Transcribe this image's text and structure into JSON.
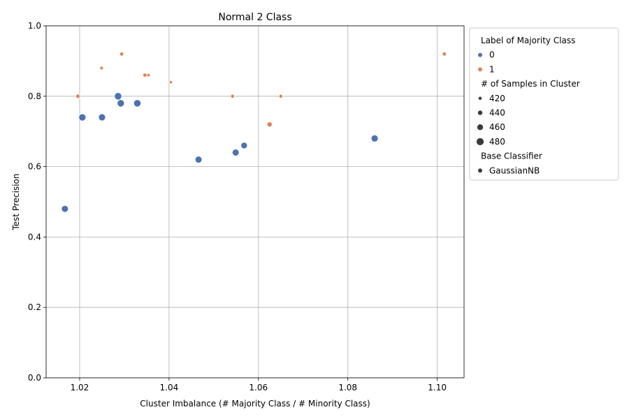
{
  "colors": {
    "class0": "#4c72b0",
    "class1": "#dd8452",
    "grid": "#b0b0b0"
  },
  "chart_data": {
    "type": "scatter",
    "title": "Normal 2 Class",
    "xlabel": "Cluster Imbalance (# Majority Class / # Minority Class)",
    "ylabel": "Test Precision",
    "xlim": [
      1.0125,
      1.106
    ],
    "ylim": [
      0.0,
      1.0
    ],
    "xticks": [
      1.02,
      1.04,
      1.06,
      1.08,
      1.1
    ],
    "xtick_labels": [
      "1.02",
      "1.04",
      "1.06",
      "1.08",
      "1.10"
    ],
    "yticks": [
      0.0,
      0.2,
      0.4,
      0.6,
      0.8,
      1.0
    ],
    "ytick_labels": [
      "0.0",
      "0.2",
      "0.4",
      "0.6",
      "0.8",
      "1.0"
    ],
    "grid": true,
    "legend_placement": "outside right",
    "legend": {
      "hue_title": "Label of Majority Class",
      "hue_entries": [
        {
          "label": "0",
          "color": "#4c72b0"
        },
        {
          "label": "1",
          "color": "#dd8452"
        }
      ],
      "size_title": "# of Samples in Cluster",
      "size_entries": [
        {
          "label": "420",
          "size": 420
        },
        {
          "label": "440",
          "size": 440
        },
        {
          "label": "460",
          "size": 460
        },
        {
          "label": "480",
          "size": 480
        }
      ],
      "style_title": "Base Classifier",
      "style_entries": [
        {
          "label": "GaussianNB"
        }
      ]
    },
    "series": [
      {
        "name": "0",
        "points": [
          {
            "x": 1.0167,
            "y": 0.48,
            "size": 475
          },
          {
            "x": 1.0206,
            "y": 0.74,
            "size": 480
          },
          {
            "x": 1.025,
            "y": 0.74,
            "size": 478
          },
          {
            "x": 1.0286,
            "y": 0.8,
            "size": 482
          },
          {
            "x": 1.0292,
            "y": 0.78,
            "size": 480
          },
          {
            "x": 1.0329,
            "y": 0.78,
            "size": 482
          },
          {
            "x": 1.0466,
            "y": 0.62,
            "size": 476
          },
          {
            "x": 1.0549,
            "y": 0.64,
            "size": 476
          },
          {
            "x": 1.0568,
            "y": 0.66,
            "size": 470
          },
          {
            "x": 1.086,
            "y": 0.68,
            "size": 478
          }
        ]
      },
      {
        "name": "1",
        "points": [
          {
            "x": 1.0196,
            "y": 0.8,
            "size": 435
          },
          {
            "x": 1.0249,
            "y": 0.88,
            "size": 425
          },
          {
            "x": 1.0294,
            "y": 0.92,
            "size": 432
          },
          {
            "x": 1.0346,
            "y": 0.86,
            "size": 432
          },
          {
            "x": 1.0354,
            "y": 0.86,
            "size": 422
          },
          {
            "x": 1.0404,
            "y": 0.84,
            "size": 418
          },
          {
            "x": 1.0542,
            "y": 0.8,
            "size": 430
          },
          {
            "x": 1.0625,
            "y": 0.72,
            "size": 448
          },
          {
            "x": 1.065,
            "y": 0.8,
            "size": 428
          },
          {
            "x": 1.1016,
            "y": 0.92,
            "size": 432
          }
        ]
      }
    ]
  }
}
